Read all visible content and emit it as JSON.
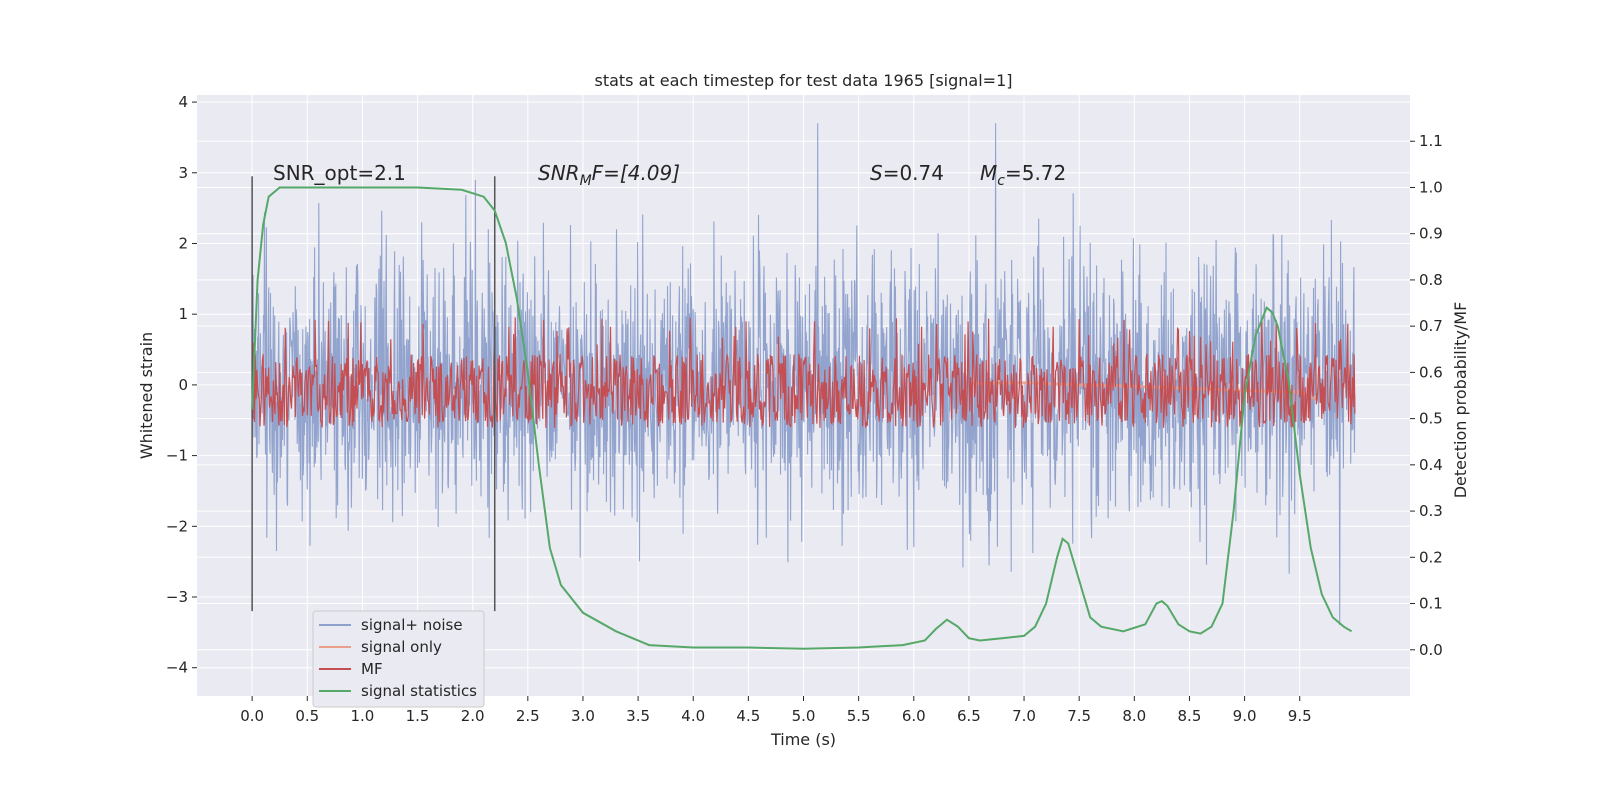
{
  "chart_data": {
    "type": "line",
    "title": "stats at each timestep for test data 1965 [signal=1]",
    "xlabel": "Time (s)",
    "ylabel": "Whitened strain",
    "y2label": "Detection probability/MF",
    "xlim": [
      -0.5,
      10.5
    ],
    "ylim": [
      -4.4,
      4.1
    ],
    "y2lim": [
      -0.1,
      1.2
    ],
    "x_ticks": [
      "0.0",
      "0.5",
      "1.0",
      "1.5",
      "2.0",
      "2.5",
      "3.0",
      "3.5",
      "4.0",
      "4.5",
      "5.0",
      "5.5",
      "6.0",
      "6.5",
      "7.0",
      "7.5",
      "8.0",
      "8.5",
      "9.0",
      "9.5"
    ],
    "y_ticks": [
      "4",
      "3",
      "2",
      "1",
      "0",
      "−1",
      "−2",
      "−3",
      "−4"
    ],
    "y2_ticks": [
      "1.1",
      "1.0",
      "0.9",
      "0.8",
      "0.7",
      "0.6",
      "0.5",
      "0.4",
      "0.3",
      "0.2",
      "0.1",
      "0.0"
    ],
    "grid": true,
    "legend_position": "lower-left",
    "annotations": {
      "snr_opt": "SNR_opt=2.1",
      "snr_mf_base": "SNR",
      "snr_mf_sub": "M",
      "snr_mf_rest": "F=[4.09]",
      "s_label": "S",
      "s_value": "=0.74",
      "mc_label": "M",
      "mc_sub": "c",
      "mc_value": "=5.72"
    },
    "markers": {
      "vertical_lines_x": [
        0.0,
        2.2
      ]
    },
    "series": [
      {
        "name": "signal+ noise",
        "color": "#8da0cb",
        "description_range": "noise band roughly between -3.4 and 3.7 whitened strain over 0–10 s",
        "envelope_upper": 2.2,
        "envelope_lower": -2.2
      },
      {
        "name": "signal only",
        "color": "#e8a08a",
        "x": [
          6.5,
          7.0,
          7.5,
          8.0,
          8.5,
          9.0,
          9.5,
          9.65
        ],
        "y": [
          0.02,
          0.03,
          0.0,
          -0.02,
          -0.05,
          -0.08,
          -0.1,
          -0.2
        ]
      },
      {
        "name": "MF",
        "color": "#c44e52",
        "axis": "right",
        "baseline": 0.56,
        "band": [
          0.5,
          0.66
        ]
      },
      {
        "name": "signal statistics",
        "color": "#55a868",
        "axis": "right",
        "x": [
          0.0,
          0.05,
          0.1,
          0.15,
          0.25,
          0.5,
          1.0,
          1.5,
          1.9,
          2.1,
          2.2,
          2.3,
          2.4,
          2.5,
          2.6,
          2.7,
          2.8,
          3.0,
          3.3,
          3.6,
          4.0,
          4.5,
          5.0,
          5.5,
          5.9,
          6.1,
          6.2,
          6.3,
          6.4,
          6.5,
          6.6,
          6.8,
          7.0,
          7.1,
          7.2,
          7.3,
          7.35,
          7.4,
          7.5,
          7.6,
          7.7,
          7.9,
          8.1,
          8.2,
          8.25,
          8.3,
          8.4,
          8.5,
          8.6,
          8.7,
          8.8,
          8.9,
          9.0,
          9.1,
          9.2,
          9.25,
          9.3,
          9.4,
          9.5,
          9.6,
          9.7,
          9.8,
          9.9,
          9.97
        ],
        "y": [
          0.52,
          0.8,
          0.92,
          0.98,
          1.0,
          1.0,
          1.0,
          1.0,
          0.995,
          0.98,
          0.95,
          0.88,
          0.76,
          0.6,
          0.4,
          0.22,
          0.14,
          0.08,
          0.04,
          0.01,
          0.005,
          0.005,
          0.002,
          0.005,
          0.01,
          0.02,
          0.045,
          0.065,
          0.05,
          0.025,
          0.02,
          0.025,
          0.03,
          0.05,
          0.1,
          0.2,
          0.24,
          0.23,
          0.15,
          0.07,
          0.05,
          0.04,
          0.055,
          0.1,
          0.105,
          0.095,
          0.055,
          0.04,
          0.035,
          0.05,
          0.1,
          0.3,
          0.55,
          0.68,
          0.74,
          0.73,
          0.7,
          0.58,
          0.38,
          0.22,
          0.12,
          0.07,
          0.05,
          0.04
        ]
      }
    ]
  }
}
